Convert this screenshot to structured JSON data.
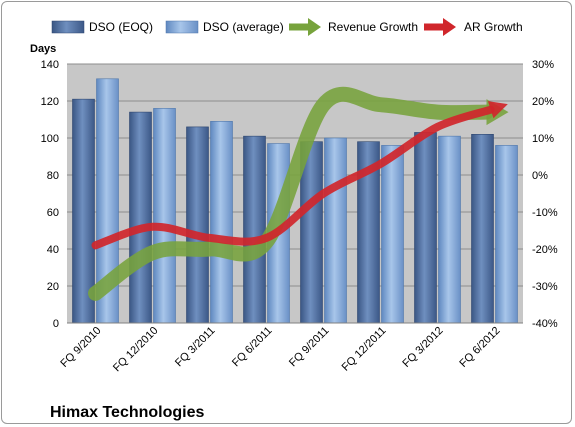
{
  "chart_data": {
    "type": "bar",
    "title": "Himax Technologies",
    "ylabel": "Days",
    "y2label": "",
    "ylim": [
      0,
      140
    ],
    "yticks": [
      0,
      20,
      40,
      60,
      80,
      100,
      120,
      140
    ],
    "y2lim": [
      -40,
      30
    ],
    "y2ticks": [
      -40,
      -30,
      -20,
      -10,
      0,
      10,
      20,
      30
    ],
    "y2tick_labels": [
      "-40%",
      "-30%",
      "-20%",
      "-10%",
      "0%",
      "10%",
      "20%",
      "30%"
    ],
    "categories": [
      "FQ 9/2010",
      "FQ 12/2010",
      "FQ 3/2011",
      "FQ 6/2011",
      "FQ 9/2011",
      "FQ 12/2011",
      "FQ 3/2012",
      "FQ 6/2012"
    ],
    "grid": true,
    "legend_position": "top",
    "series": [
      {
        "name": "DSO (EOQ)",
        "kind": "bar",
        "axis": "left",
        "color": "#4f6fa0",
        "values": [
          121,
          114,
          106,
          101,
          98,
          98,
          103,
          102
        ]
      },
      {
        "name": "DSO (average)",
        "kind": "bar",
        "axis": "left",
        "color": "#7fa5d6",
        "values": [
          132,
          116,
          109,
          97,
          100,
          96,
          101,
          96
        ]
      },
      {
        "name": "Revenue Growth",
        "kind": "arrow-line",
        "axis": "right",
        "color": "#77a33c",
        "values": [
          -32,
          -21,
          -20,
          -18,
          19,
          19,
          17,
          17
        ]
      },
      {
        "name": "AR Growth",
        "kind": "arrow-line",
        "axis": "right",
        "color": "#d0262b",
        "values": [
          -19,
          -14,
          -17,
          -17,
          -5,
          3,
          13,
          18
        ]
      }
    ]
  }
}
